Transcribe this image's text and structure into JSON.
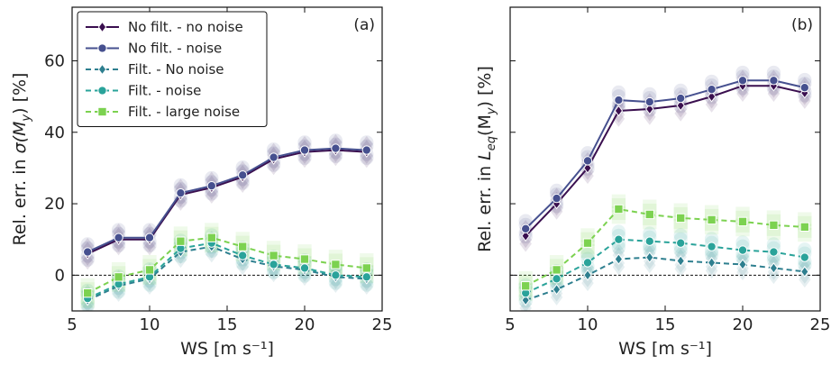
{
  "chart_data": [
    {
      "type": "line",
      "panel_label": "(a)",
      "xlabel": "WS [m s⁻¹]",
      "ylabel_prefix": "Rel. err. in ",
      "ylabel_quantity": "σ(M",
      "ylabel_sub": "y",
      "ylabel_suffix": ") [%]",
      "xlim": [
        5,
        25
      ],
      "ylim": [
        -10,
        75
      ],
      "xticks": [
        5,
        10,
        15,
        20,
        25
      ],
      "yticks": [
        0,
        20,
        40,
        60
      ],
      "x": [
        6,
        8,
        10,
        12,
        14,
        16,
        18,
        20,
        22,
        24
      ],
      "series": [
        {
          "name": "No filt. - no noise",
          "marker": "diamond",
          "dash": "solid",
          "color": "#3a0f4f",
          "values": [
            6,
            10,
            10,
            22.5,
            24.5,
            27.5,
            32.5,
            34.5,
            35,
            34.5
          ]
        },
        {
          "name": "No filt. - noise",
          "marker": "circle",
          "dash": "solid",
          "color": "#46508f",
          "values": [
            6.5,
            10.5,
            10.5,
            23,
            25,
            28,
            33,
            35,
            35.5,
            35
          ]
        },
        {
          "name": "Filt. - No noise",
          "marker": "diamond",
          "dash": "dashed",
          "color": "#2e7f8f",
          "values": [
            -7,
            -3,
            -1,
            6.5,
            8,
            4.5,
            2.5,
            1.5,
            -0.5,
            -1
          ]
        },
        {
          "name": "Filt. - noise",
          "marker": "circle",
          "dash": "dashed",
          "color": "#2aa39a",
          "values": [
            -6.5,
            -2.5,
            -0.5,
            7.5,
            9,
            5.5,
            3,
            2,
            0,
            -0.5
          ]
        },
        {
          "name": "Filt. - large noise",
          "marker": "square",
          "dash": "dashed",
          "color": "#7cd250",
          "values": [
            -5,
            -0.5,
            1.5,
            9.5,
            10.5,
            8,
            5.5,
            4.5,
            3,
            2
          ]
        }
      ],
      "reference_line": 0
    },
    {
      "type": "line",
      "panel_label": "(b)",
      "xlabel": "WS [m s⁻¹]",
      "ylabel_prefix": "Rel. err. in ",
      "ylabel_quantity": "L",
      "ylabel_sub": "eq",
      "ylabel_suffix": "(M",
      "ylabel_sub2": "y",
      "ylabel_end": ") [%]",
      "xlim": [
        5,
        25
      ],
      "ylim": [
        -10,
        75
      ],
      "xticks": [
        5,
        10,
        15,
        20,
        25
      ],
      "yticks": [],
      "x": [
        6,
        8,
        10,
        12,
        14,
        16,
        18,
        20,
        22,
        24
      ],
      "series": [
        {
          "name": "No filt. - no noise",
          "marker": "diamond",
          "dash": "solid",
          "color": "#3a0f4f",
          "values": [
            11,
            20,
            30,
            46,
            46.5,
            47.5,
            50,
            53,
            53,
            51
          ]
        },
        {
          "name": "No filt. - noise",
          "marker": "circle",
          "dash": "solid",
          "color": "#46508f",
          "values": [
            13,
            21.5,
            32,
            49,
            48.5,
            49.5,
            52,
            54.5,
            54.5,
            52.5
          ]
        },
        {
          "name": "Filt. - No noise",
          "marker": "diamond",
          "dash": "dashed",
          "color": "#2e7f8f",
          "values": [
            -7,
            -4,
            0,
            4.5,
            5,
            4,
            3.5,
            3,
            2,
            1
          ]
        },
        {
          "name": "Filt. - noise",
          "marker": "circle",
          "dash": "dashed",
          "color": "#2aa39a",
          "values": [
            -5,
            -1,
            3.5,
            10,
            9.5,
            9,
            8,
            7,
            6.5,
            5
          ]
        },
        {
          "name": "Filt. - large noise",
          "marker": "square",
          "dash": "dashed",
          "color": "#7cd250",
          "values": [
            -3,
            1.5,
            9,
            18.5,
            17,
            16,
            15.5,
            15,
            14,
            13.5
          ]
        }
      ],
      "reference_line": 0
    }
  ]
}
